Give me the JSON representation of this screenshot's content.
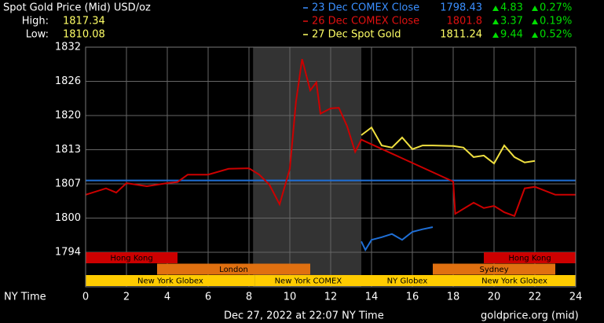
{
  "chart_data": {
    "type": "line",
    "title": "Spot Gold Price (Mid) USD/oz",
    "high_label": "High:",
    "high": 1817.34,
    "low_label": "Low:",
    "low": 1810.08,
    "xlabel": "NY Time",
    "footer": "Dec 27, 2022 at 22:07 NY Time",
    "source": "goldprice.org (mid)",
    "xlim": [
      0,
      24
    ],
    "xticks": [
      0,
      2,
      4,
      6,
      8,
      10,
      12,
      14,
      16,
      18,
      20,
      22,
      24
    ],
    "ylim": [
      1793.75,
      1832.45
    ],
    "yticks": [
      {
        "value": 1793.75,
        "label": "1794"
      },
      {
        "value": 1800.2,
        "label": "1800"
      },
      {
        "value": 1806.65,
        "label": "1807"
      },
      {
        "value": 1813.1,
        "label": "1813"
      },
      {
        "value": 1819.55,
        "label": "1820"
      },
      {
        "value": 1826.0,
        "label": "1826"
      },
      {
        "value": 1832.45,
        "label": "1832"
      }
    ],
    "grid": true,
    "shaded": [
      8.2,
      13.5
    ],
    "series": [
      {
        "name": "23 Dec COMEX Close",
        "color": "#1f6fd6",
        "legend_color": "#3a8fff",
        "last": 1798.43,
        "change": 4.83,
        "change_pct": 0.27,
        "change_pct_label": "0.27%",
        "ref": 1807.3,
        "x": [
          13.5,
          13.7,
          14,
          14.5,
          15,
          15.5,
          16,
          16.5,
          17
        ],
        "values": [
          1795.8,
          1794.2,
          1796.1,
          1796.6,
          1797.2,
          1796.1,
          1797.6,
          1798.1,
          1798.5
        ]
      },
      {
        "name": "26 Dec COMEX Close",
        "color": "#cc0000",
        "legend_color": "#e01010",
        "last": 1801.8,
        "change": 3.37,
        "change_pct": 0.19,
        "change_pct_label": "0.19%",
        "x": [
          0,
          1,
          1.5,
          2,
          3,
          4,
          4.5,
          5,
          6,
          7,
          8,
          8.5,
          9,
          9.5,
          10,
          10.3,
          10.6,
          11,
          11.3,
          11.5,
          12,
          12.4,
          12.8,
          13.2,
          13.5,
          18,
          18.1,
          19,
          19.5,
          20,
          20.5,
          21,
          21.5,
          22,
          23,
          24
        ],
        "values": [
          1804.6,
          1805.8,
          1805.0,
          1806.8,
          1806.2,
          1806.8,
          1807.0,
          1808.4,
          1808.4,
          1809.5,
          1809.6,
          1808.4,
          1806.5,
          1802.8,
          1809.5,
          1822.1,
          1830.2,
          1824.3,
          1825.8,
          1819.9,
          1820.9,
          1821.0,
          1817.6,
          1812.7,
          1815.0,
          1807.1,
          1801.0,
          1803.1,
          1802.1,
          1802.5,
          1801.3,
          1800.6,
          1805.8,
          1806.1,
          1804.6,
          1804.6
        ]
      },
      {
        "name": "27 Dec Spot Gold",
        "color": "#f0e040",
        "legend_color": "#ffff66",
        "last": 1811.24,
        "change": 9.44,
        "change_pct": 0.52,
        "change_pct_label": "0.52%",
        "x": [
          13.5,
          14,
          14.5,
          15,
          15.5,
          16,
          16.5,
          17,
          18,
          18.5,
          19,
          19.5,
          20,
          20.5,
          21,
          21.5,
          22
        ],
        "values": [
          1815.85,
          1817.3,
          1813.9,
          1813.5,
          1815.4,
          1813.2,
          1813.9,
          1813.9,
          1813.8,
          1813.5,
          1811.7,
          1812.0,
          1810.5,
          1813.9,
          1811.7,
          1810.7,
          1811.0
        ]
      }
    ],
    "sessions": [
      {
        "label": "Hong Kong",
        "start": 0,
        "end": 4.5,
        "row": 0,
        "color": "#cc0000"
      },
      {
        "label": "Hong Kong",
        "start": 19.5,
        "end": 24,
        "row": 0,
        "color": "#cc0000"
      },
      {
        "label": "London",
        "start": 3.5,
        "end": 11,
        "row": 1,
        "color": "#e07010"
      },
      {
        "label": "Sydney",
        "start": 17,
        "end": 23,
        "row": 1,
        "color": "#e07010"
      },
      {
        "label": "New York Globex",
        "start": 0,
        "end": 8.3,
        "row": 2,
        "color": "#ffcc00"
      },
      {
        "label": "New York COMEX",
        "start": 8.3,
        "end": 13.5,
        "row": 2,
        "color": "#ffcc00"
      },
      {
        "label": "NY Globex",
        "start": 13.5,
        "end": 18,
        "row": 2,
        "color": "#ffcc00"
      },
      {
        "label": "New York Globex",
        "start": 18,
        "end": 24,
        "row": 2,
        "color": "#ffcc00"
      }
    ]
  }
}
